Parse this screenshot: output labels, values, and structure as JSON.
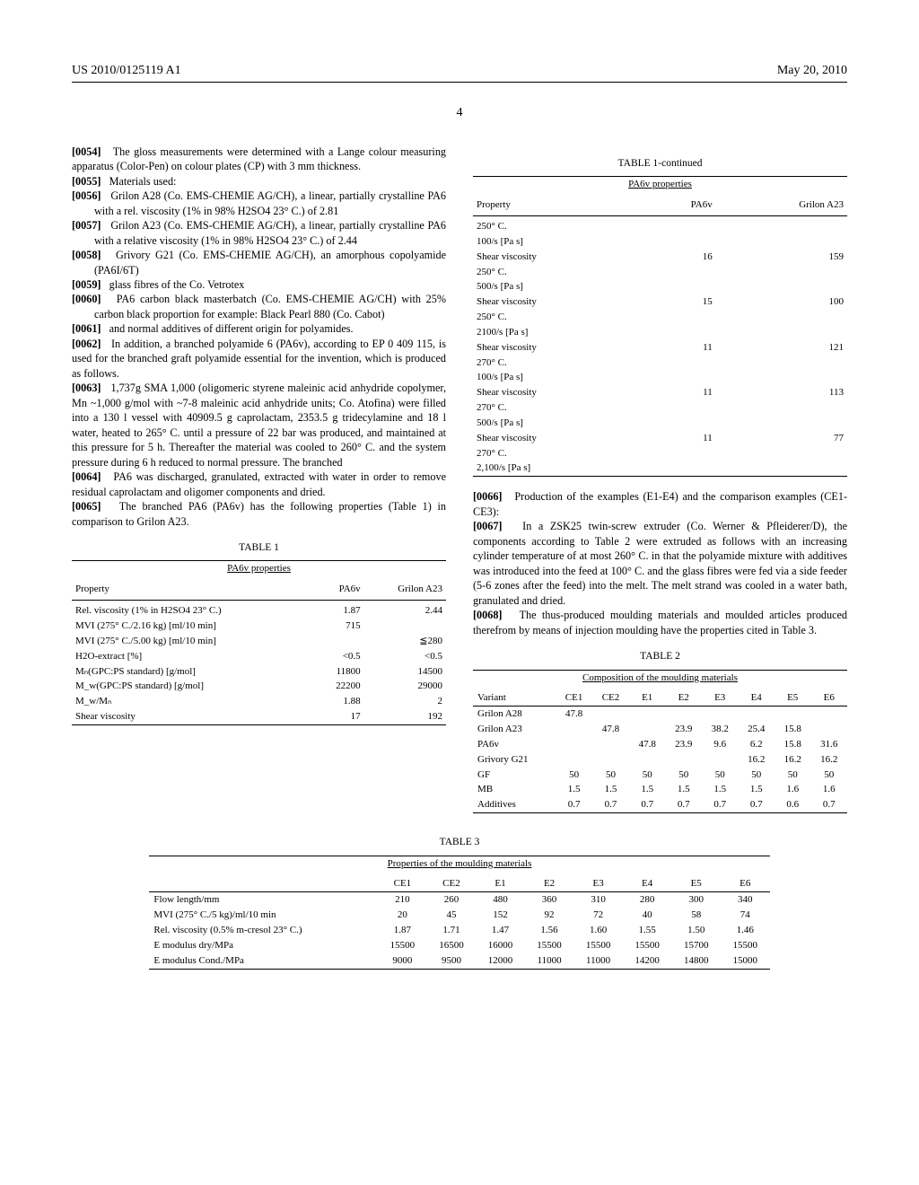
{
  "header": {
    "docnum": "US 2010/0125119 A1",
    "date": "May 20, 2010"
  },
  "page_number": "4",
  "left_paragraphs": {
    "p54": "The gloss measurements were determined with a Lange colour measuring apparatus (Color-Pen) on colour plates (CP) with 3 mm thickness.",
    "p55": "Materials used:",
    "p56": "Grilon A28 (Co. EMS-CHEMIE AG/CH), a linear, partially crystalline PA6 with a rel. viscosity (1% in 98% H2SO4 23° C.) of 2.81",
    "p57": "Grilon A23 (Co. EMS-CHEMIE AG/CH), a linear, partially crystalline PA6 with a relative viscosity (1% in 98% H2SO4 23° C.) of 2.44",
    "p58": "Grivory G21 (Co. EMS-CHEMIE AG/CH), an amorphous copolyamide (PA6I/6T)",
    "p59": "glass fibres of the Co. Vetrotex",
    "p60": "PA6 carbon black masterbatch (Co. EMS-CHEMIE AG/CH) with 25% carbon black proportion for example: Black Pearl 880 (Co. Cabot)",
    "p61": "and normal additives of different origin for polyamides.",
    "p62": "In addition, a branched polyamide 6 (PA6v), according to EP 0 409 115, is used for the branched graft polyamide essential for the invention, which is produced as follows.",
    "p63": "1,737g SMA 1,000 (oligomeric styrene maleinic acid anhydride copolymer, Mn ~1,000 g/mol with ~7-8 maleinic acid anhydride units; Co. Atofina) were filled into a 130 l vessel with 40909.5 g caprolactam, 2353.5 g tridecylamine and 18 l water, heated to 265° C. until a pressure of 22 bar was produced, and maintained at this pressure for 5 h. Thereafter the material was cooled to 260° C. and the system pressure during 6 h reduced to normal pressure. The branched",
    "p64": "PA6 was discharged, granulated, extracted with water in order to remove residual caprolactam and oligomer components and dried.",
    "p65": "The branched PA6 (PA6v) has the following properties (Table 1) in comparison to Grilon A23."
  },
  "right_paragraphs": {
    "p66": "Production of the examples (E1-E4) and the comparison examples (CE1-CE3):",
    "p67": "In a ZSK25 twin-screw extruder (Co. Werner & Pfleiderer/D), the components according to Table 2 were extruded as follows with an increasing cylinder temperature of at most 260° C. in that the polyamide mixture with additives was introduced into the feed at 100° C. and the glass fibres were fed via a side feeder (5-6 zones after the feed) into the melt. The melt strand was cooled in a water bath, granulated and dried.",
    "p68": "The thus-produced moulding materials and moulded articles produced therefrom by means of injection moulding have the properties cited in Table 3."
  },
  "table1": {
    "title": "TABLE 1",
    "subtitle": "PA6v properties",
    "col_headers": [
      "Property",
      "PA6v",
      "Grilon A23"
    ],
    "rows": [
      [
        "Rel. viscosity (1% in H2SO4 23° C.)",
        "1.87",
        "2.44"
      ],
      [
        "MVI (275° C./2.16 kg) [ml/10 min]",
        "715",
        ""
      ],
      [
        "MVI (275° C./5.00 kg) [ml/10 min]",
        "",
        "≦280"
      ],
      [
        "H2O-extract [%]",
        "<0.5",
        "<0.5"
      ],
      [
        "Mₙ(GPC:PS standard) [g/mol]",
        "11800",
        "14500"
      ],
      [
        "M_w(GPC:PS standard) [g/mol]",
        "22200",
        "29000"
      ],
      [
        "M_w/Mₙ",
        "1.88",
        "2"
      ],
      [
        "Shear viscosity",
        "17",
        "192"
      ]
    ]
  },
  "table1cont": {
    "title": "TABLE 1-continued",
    "subtitle": "PA6v properties",
    "col_headers": [
      "Property",
      "PA6v",
      "Grilon A23"
    ],
    "rows": [
      [
        "250° C.",
        "",
        ""
      ],
      [
        "100/s [Pa s]",
        "",
        ""
      ],
      [
        "Shear viscosity",
        "16",
        "159"
      ],
      [
        "250° C.",
        "",
        ""
      ],
      [
        "500/s [Pa s]",
        "",
        ""
      ],
      [
        "Shear viscosity",
        "15",
        "100"
      ],
      [
        "250° C.",
        "",
        ""
      ],
      [
        "2100/s [Pa s]",
        "",
        ""
      ],
      [
        "Shear viscosity",
        "11",
        "121"
      ],
      [
        "270° C.",
        "",
        ""
      ],
      [
        "100/s [Pa s]",
        "",
        ""
      ],
      [
        "Shear viscosity",
        "11",
        "113"
      ],
      [
        "270° C.",
        "",
        ""
      ],
      [
        "500/s [Pa s]",
        "",
        ""
      ],
      [
        "Shear viscosity",
        "11",
        "77"
      ],
      [
        "270° C.",
        "",
        ""
      ],
      [
        "2,100/s [Pa s]",
        "",
        ""
      ]
    ]
  },
  "table2": {
    "title": "TABLE 2",
    "subtitle": "Composition of the moulding materials",
    "col_headers": [
      "Variant",
      "CE1",
      "CE2",
      "E1",
      "E2",
      "E3",
      "E4",
      "E5",
      "E6"
    ],
    "rows": [
      [
        "Grilon A28",
        "47.8",
        "",
        "",
        "",
        "",
        "",
        "",
        ""
      ],
      [
        "Grilon A23",
        "",
        "47.8",
        "",
        "23.9",
        "38.2",
        "25.4",
        "15.8",
        ""
      ],
      [
        "PA6v",
        "",
        "",
        "47.8",
        "23.9",
        "9.6",
        "6.2",
        "15.8",
        "31.6"
      ],
      [
        "Grivory G21",
        "",
        "",
        "",
        "",
        "",
        "16.2",
        "16.2",
        "16.2"
      ],
      [
        "GF",
        "50",
        "50",
        "50",
        "50",
        "50",
        "50",
        "50",
        "50"
      ],
      [
        "MB",
        "1.5",
        "1.5",
        "1.5",
        "1.5",
        "1.5",
        "1.5",
        "1.6",
        "1.6"
      ],
      [
        "Additives",
        "0.7",
        "0.7",
        "0.7",
        "0.7",
        "0.7",
        "0.7",
        "0.6",
        "0.7"
      ]
    ]
  },
  "table3": {
    "title": "TABLE 3",
    "subtitle": "Properties of the moulding materials",
    "col_headers": [
      "",
      "CE1",
      "CE2",
      "E1",
      "E2",
      "E3",
      "E4",
      "E5",
      "E6"
    ],
    "rows": [
      [
        "Flow length/mm",
        "210",
        "260",
        "480",
        "360",
        "310",
        "280",
        "300",
        "340"
      ],
      [
        "MVI (275° C./5 kg)/ml/10 min",
        "20",
        "45",
        "152",
        "92",
        "72",
        "40",
        "58",
        "74"
      ],
      [
        "Rel. viscosity (0.5% m-cresol 23° C.)",
        "1.87",
        "1.71",
        "1.47",
        "1.56",
        "1.60",
        "1.55",
        "1.50",
        "1.46"
      ],
      [
        "E modulus dry/MPa",
        "15500",
        "16500",
        "16000",
        "15500",
        "15500",
        "15500",
        "15700",
        "15500"
      ],
      [
        "E modulus Cond./MPa",
        "9000",
        "9500",
        "12000",
        "11000",
        "11000",
        "14200",
        "14800",
        "15000"
      ]
    ]
  }
}
